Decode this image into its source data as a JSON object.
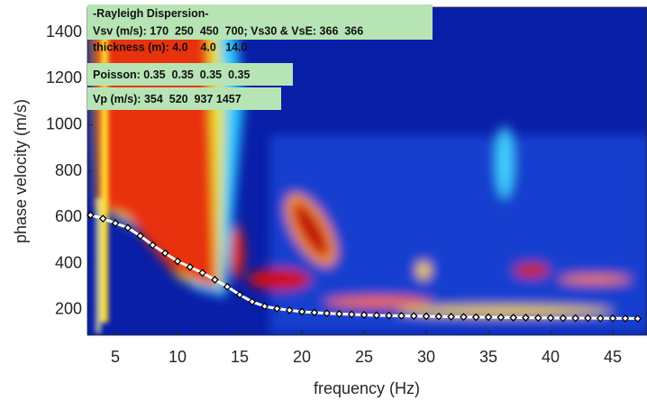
{
  "chart_data": {
    "type": "line",
    "xlabel": "frequency (Hz)",
    "ylabel": "phase velocity (m/s)",
    "xlim": [
      2.75,
      47.75
    ],
    "ylim": [
      90,
      1510
    ],
    "xticks": [
      5,
      10,
      15,
      20,
      25,
      30,
      35,
      40,
      45
    ],
    "yticks": [
      200,
      400,
      600,
      800,
      1000,
      1200,
      1400
    ],
    "annotations": [
      "-Rayleigh Dispersion-",
      "Vsv (m/s): 170  250  450  700; Vs30 & VsE: 366  366",
      "thickness (m): 4.0    4.0   14.0",
      "Poisson: 0.35  0.35  0.35  0.35",
      "Vp (m/s): 354  520  937 1457"
    ],
    "x": [
      3,
      4,
      5,
      6,
      7,
      8,
      9,
      10,
      11,
      12,
      13,
      14,
      15,
      16,
      17,
      18,
      19,
      20,
      21,
      22,
      23,
      24,
      25,
      26,
      27,
      28,
      29,
      30,
      31,
      32,
      33,
      34,
      35,
      36,
      37,
      38,
      39,
      40,
      41,
      42,
      43,
      44,
      45,
      46,
      47
    ],
    "series": [
      {
        "color": "#ffffff",
        "values": [
          610,
          595,
          575,
          555,
          520,
          480,
          445,
          410,
          385,
          360,
          330,
          300,
          265,
          235,
          215,
          205,
          198,
          192,
          188,
          185,
          182,
          180,
          178,
          176,
          175,
          174,
          173,
          172,
          171,
          170,
          169,
          168,
          168,
          167,
          166,
          166,
          165,
          165,
          164,
          164,
          164,
          163,
          163,
          163,
          162
        ]
      }
    ]
  }
}
